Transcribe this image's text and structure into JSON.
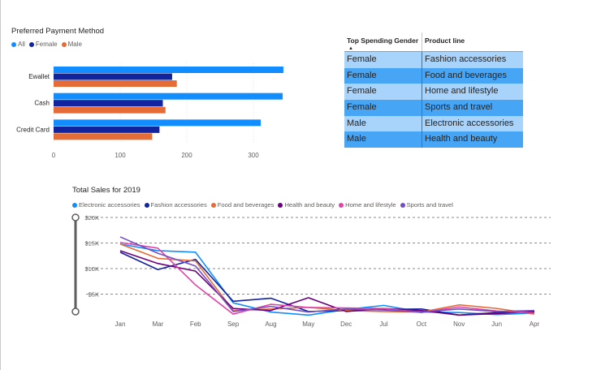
{
  "bar_chart": {
    "title": "Preferred Payment Method",
    "legend": [
      {
        "label": "All",
        "color": "#118dff"
      },
      {
        "label": "Female",
        "color": "#12239e"
      },
      {
        "label": "Male",
        "color": "#e66c37"
      }
    ]
  },
  "table": {
    "headers": [
      "Top Spending Gender",
      "Product line"
    ],
    "rows": [
      {
        "gender": "Female",
        "product": "Fashion accessories"
      },
      {
        "gender": "Female",
        "product": "Food and beverages"
      },
      {
        "gender": "Female",
        "product": "Home and lifestyle"
      },
      {
        "gender": "Female",
        "product": "Sports and travel"
      },
      {
        "gender": "Male",
        "product": "Electronic accessories"
      },
      {
        "gender": "Male",
        "product": "Health and beauty"
      }
    ]
  },
  "line_chart": {
    "title": "Total Sales for 2019",
    "legend": [
      {
        "label": "Electronic accessories",
        "color": "#118dff"
      },
      {
        "label": "Fashion accessories",
        "color": "#12239e"
      },
      {
        "label": "Food and beverages",
        "color": "#e66c37"
      },
      {
        "label": "Health and beauty",
        "color": "#6b007b"
      },
      {
        "label": "Home and lifestyle",
        "color": "#e044a7"
      },
      {
        "label": "Sports and travel",
        "color": "#744ec2"
      }
    ]
  },
  "chart_data": [
    {
      "type": "bar",
      "title": "Preferred Payment Method",
      "categories": [
        "Ewallet",
        "Cash",
        "Credit Card"
      ],
      "series": [
        {
          "name": "All",
          "color": "#118dff",
          "values": [
            345,
            344,
            311
          ]
        },
        {
          "name": "Female",
          "color": "#12239e",
          "values": [
            178,
            164,
            159
          ]
        },
        {
          "name": "Male",
          "color": "#e66c37",
          "values": [
            185,
            168,
            148
          ]
        }
      ],
      "xticks": [
        0,
        100,
        200,
        300
      ],
      "xlim": [
        0,
        350
      ],
      "grid": true,
      "legend_position": "top-left"
    },
    {
      "type": "line",
      "title": "Total Sales for 2019",
      "x": [
        "Jan",
        "Mar",
        "Feb",
        "Sep",
        "Aug",
        "May",
        "Dec",
        "Jul",
        "Oct",
        "Nov",
        "Jun",
        "Apr"
      ],
      "series": [
        {
          "name": "Electronic accessories",
          "color": "#118dff",
          "values": [
            14800,
            13500,
            13200,
            3300,
            1500,
            900,
            2000,
            2800,
            1500,
            1400,
            1000,
            1300
          ]
        },
        {
          "name": "Fashion accessories",
          "color": "#12239e",
          "values": [
            13200,
            9800,
            11800,
            3600,
            4200,
            1600,
            1800,
            2000,
            2100,
            900,
            1400,
            1500
          ]
        },
        {
          "name": "Food and beverages",
          "color": "#e66c37",
          "values": [
            14800,
            12000,
            11500,
            1800,
            2100,
            2400,
            1800,
            1600,
            1500,
            2900,
            2200,
            1100
          ]
        },
        {
          "name": "Health and beauty",
          "color": "#6b007b",
          "values": [
            13500,
            11000,
            9500,
            2200,
            1800,
            4300,
            1600,
            2200,
            1800,
            900,
            1200,
            1600
          ]
        },
        {
          "name": "Home and lifestyle",
          "color": "#e044a7",
          "values": [
            15100,
            14000,
            6800,
            1100,
            3000,
            2400,
            2300,
            2200,
            1400,
            2500,
            1700,
            1300
          ]
        },
        {
          "name": "Sports and travel",
          "color": "#744ec2",
          "values": [
            16200,
            13000,
            10500,
            1600,
            2600,
            1500,
            2100,
            1900,
            1500,
            2100,
            1600,
            1800
          ]
        }
      ],
      "yticks": [
        "$5K",
        "$10K",
        "$15K",
        "$20K"
      ],
      "ylim": [
        0,
        20000
      ],
      "grid": true,
      "legend_position": "top-left"
    }
  ]
}
